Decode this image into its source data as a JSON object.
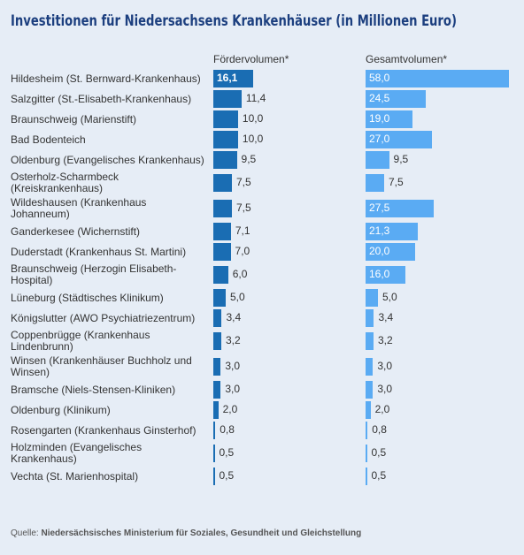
{
  "chart_data": {
    "type": "bar",
    "title": "Investitionen für Niedersachsens Krankenhäuser (in Millionen Euro)",
    "categories": [
      "Hildesheim (St. Bernward-Krankenhaus)",
      "Salzgitter (St.-Elisabeth-Krankenhaus)",
      "Braunschweig (Marienstift)",
      "Bad Bodenteich",
      "Oldenburg (Evangelisches Krankenhaus)",
      "Osterholz-Scharmbeck\n(Kreiskrankenhaus)",
      "Wildeshausen (Krankenhaus\nJohanneum)",
      "Ganderkesee (Wichernstift)",
      "Duderstadt (Krankenhaus St. Martini)",
      "Braunschweig (Herzogin Elisabeth-\nHospital)",
      "Lüneburg (Städtisches Klinikum)",
      "Königslutter (AWO Psychiatriezentrum)",
      "Coppenbrügge (Krankenhaus\nLindenbrunn)",
      "Winsen (Krankenhäuser Buchholz und\nWinsen)",
      "Bramsche (Niels-Stensen-Kliniken)",
      "Oldenburg (Klinikum)",
      "Rosengarten (Krankenhaus Ginsterhof)",
      "Holzminden (Evangelisches\nKrankenhaus)",
      "Vechta (St. Marienhospital)"
    ],
    "series": [
      {
        "name": "Fördervolumen*",
        "color": "#1a6db3",
        "values": [
          16.1,
          11.4,
          10.0,
          10.0,
          9.5,
          7.5,
          7.5,
          7.1,
          7.0,
          6.0,
          5.0,
          3.4,
          3.2,
          3.0,
          3.0,
          2.0,
          0.8,
          0.5,
          0.5
        ],
        "value_labels": [
          "16,1",
          "11,4",
          "10,0",
          "10,0",
          "9,5",
          "7,5",
          "7,5",
          "7,1",
          "7,0",
          "6,0",
          "5,0",
          "3,4",
          "3,2",
          "3,0",
          "3,0",
          "2,0",
          "0,8",
          "0,5",
          "0,5"
        ]
      },
      {
        "name": "Gesamtvolumen*",
        "color": "#5aabf3",
        "values": [
          58.0,
          24.5,
          19.0,
          27.0,
          9.5,
          7.5,
          27.5,
          21.3,
          20.0,
          16.0,
          5.0,
          3.4,
          3.2,
          3.0,
          3.0,
          2.0,
          0.8,
          0.5,
          0.5
        ],
        "value_labels": [
          "58,0",
          "24,5",
          "19,0",
          "27,0",
          "9,5",
          "7,5",
          "27,5",
          "21,3",
          "20,0",
          "16,0",
          "5,0",
          "3,4",
          "3,2",
          "3,0",
          "3,0",
          "2,0",
          "0,8",
          "0,5",
          "0,5"
        ]
      }
    ],
    "xlim": [
      0,
      58
    ],
    "source_label": "Quelle:",
    "source": "Niedersächsisches Ministerium für Soziales, Gesundheit und Gleichstellung"
  }
}
